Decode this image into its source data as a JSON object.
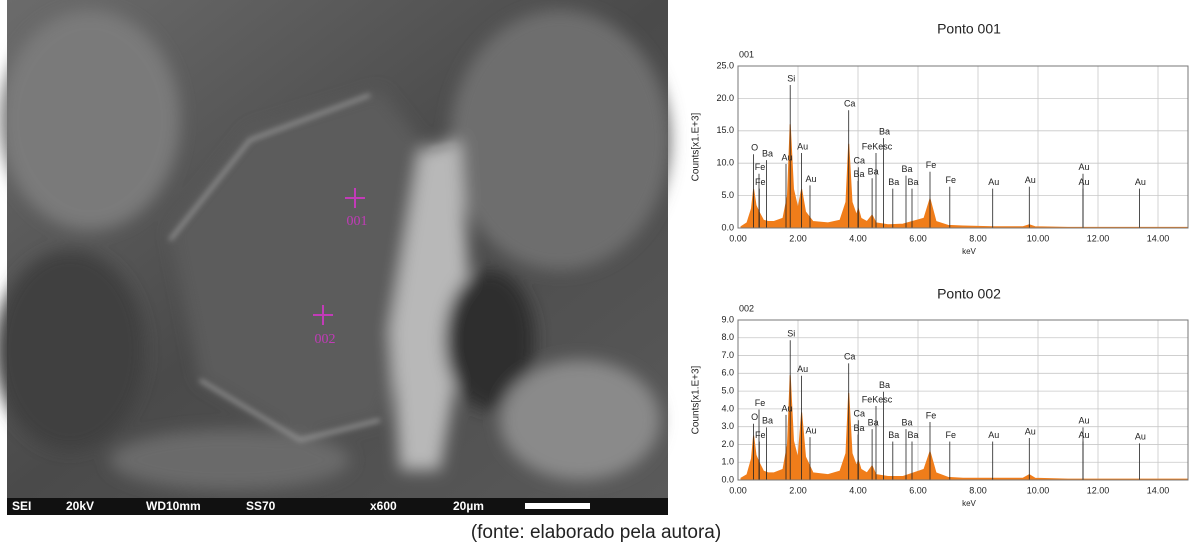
{
  "image": {
    "markers": [
      "001",
      "002"
    ],
    "info_bar": [
      "SEI",
      "20kV",
      "WD10mm",
      "SS70",
      "x600",
      "20µm"
    ]
  },
  "caption": "(fonte: elaborado pela autora)",
  "chart_data": [
    {
      "type": "area",
      "title": "Ponto 001",
      "spectrum_id": "001",
      "ylabel": "Counts[x1.E+3]",
      "xlabel": "keV",
      "color": "#f07d1a",
      "grid": true,
      "xlim": [
        0,
        15
      ],
      "ylim": [
        0,
        25
      ],
      "xticks": [
        {
          "value": 0,
          "label": "0.00"
        },
        {
          "value": 2,
          "label": "2.00"
        },
        {
          "value": 4,
          "label": "4.00"
        },
        {
          "value": 6,
          "label": "6.00"
        },
        {
          "value": 8,
          "label": "8.00"
        },
        {
          "value": 10,
          "label": "10.00"
        },
        {
          "value": 12,
          "label": "12.00"
        },
        {
          "value": 14,
          "label": "14.00"
        }
      ],
      "yticks": [
        {
          "value": 0,
          "label": "0.0"
        },
        {
          "value": 5,
          "label": "5.0"
        },
        {
          "value": 10,
          "label": "10.0"
        },
        {
          "value": 15,
          "label": "15.0"
        },
        {
          "value": 20,
          "label": "20.0"
        },
        {
          "value": 25,
          "label": "25.0"
        }
      ],
      "x": [
        0.1,
        0.3,
        0.45,
        0.52,
        0.6,
        0.7,
        0.85,
        1.0,
        1.2,
        1.5,
        1.65,
        1.74,
        1.85,
        2.0,
        2.12,
        2.25,
        2.5,
        3.0,
        3.4,
        3.6,
        3.69,
        3.8,
        3.95,
        4.01,
        4.1,
        4.3,
        4.47,
        4.6,
        5.0,
        5.5,
        6.2,
        6.4,
        6.6,
        7.0,
        7.5,
        8.5,
        9.5,
        9.71,
        9.9,
        11.0,
        12.0,
        13.0,
        14.0,
        15.0
      ],
      "values": [
        0.2,
        0.8,
        3.0,
        6.0,
        3.5,
        2.5,
        1.2,
        1.0,
        1.0,
        1.5,
        5.0,
        16.0,
        6.0,
        3.0,
        6.0,
        2.5,
        1.0,
        0.8,
        1.2,
        4.0,
        13.0,
        4.0,
        2.0,
        3.0,
        1.5,
        1.0,
        2.0,
        0.8,
        0.5,
        0.6,
        1.5,
        4.5,
        1.0,
        0.4,
        0.3,
        0.2,
        0.2,
        0.5,
        0.2,
        0.1,
        0.1,
        0.1,
        0.1,
        0.1
      ],
      "annotations": [
        {
          "text": "Si",
          "x": 1.74,
          "y": 23
        },
        {
          "text": "Ca",
          "x": 3.69,
          "y": 19.1
        },
        {
          "text": "Ba",
          "x": 4.85,
          "y": 14.8
        },
        {
          "text": "FeKesc",
          "x": 4.6,
          "y": 12.5
        },
        {
          "text": "O",
          "x": 0.52,
          "y": 12.3
        },
        {
          "text": "Ba",
          "x": 0.95,
          "y": 11.4
        },
        {
          "text": "Au",
          "x": 2.12,
          "y": 12.5
        },
        {
          "text": "Au",
          "x": 1.6,
          "y": 10.8
        },
        {
          "text": "Fe",
          "x": 0.7,
          "y": 9.3
        },
        {
          "text": "Fe",
          "x": 0.71,
          "y": 7
        },
        {
          "text": "Au",
          "x": 2.4,
          "y": 7.5
        },
        {
          "text": "Ca",
          "x": 4.01,
          "y": 10.3
        },
        {
          "text": "Ba",
          "x": 4.0,
          "y": 8.2
        },
        {
          "text": "Ba",
          "x": 4.47,
          "y": 8.6
        },
        {
          "text": "Ba",
          "x": 5.6,
          "y": 9
        },
        {
          "text": "Ba",
          "x": 5.16,
          "y": 7
        },
        {
          "text": "Ba",
          "x": 5.8,
          "y": 7
        },
        {
          "text": "Fe",
          "x": 6.4,
          "y": 9.6
        },
        {
          "text": "Fe",
          "x": 7.06,
          "y": 7.3
        },
        {
          "text": "Au",
          "x": 8.49,
          "y": 7
        },
        {
          "text": "Au",
          "x": 9.71,
          "y": 7.3
        },
        {
          "text": "Au",
          "x": 11.5,
          "y": 9.3
        },
        {
          "text": "Au",
          "x": 11.5,
          "y": 7
        },
        {
          "text": "Au",
          "x": 13.38,
          "y": 7
        }
      ]
    },
    {
      "type": "area",
      "title": "Ponto 002",
      "spectrum_id": "002",
      "ylabel": "Counts[x1.E+3]",
      "xlabel": "keV",
      "color": "#f07d1a",
      "grid": true,
      "xlim": [
        0,
        15
      ],
      "ylim": [
        0,
        9
      ],
      "xticks": [
        {
          "value": 0,
          "label": "0.00"
        },
        {
          "value": 2,
          "label": "2.00"
        },
        {
          "value": 4,
          "label": "4.00"
        },
        {
          "value": 6,
          "label": "6.00"
        },
        {
          "value": 8,
          "label": "8.00"
        },
        {
          "value": 10,
          "label": "10.00"
        },
        {
          "value": 12,
          "label": "12.00"
        },
        {
          "value": 14,
          "label": "14.00"
        }
      ],
      "yticks": [
        {
          "value": 0,
          "label": "0.0"
        },
        {
          "value": 1,
          "label": "1.0"
        },
        {
          "value": 2,
          "label": "2.0"
        },
        {
          "value": 3,
          "label": "3.0"
        },
        {
          "value": 4,
          "label": "4.0"
        },
        {
          "value": 5,
          "label": "5.0"
        },
        {
          "value": 6,
          "label": "6.0"
        },
        {
          "value": 7,
          "label": "7.0"
        },
        {
          "value": 8,
          "label": "8.0"
        },
        {
          "value": 9,
          "label": "9.0"
        }
      ],
      "x": [
        0.1,
        0.3,
        0.45,
        0.52,
        0.6,
        0.7,
        0.85,
        1.0,
        1.2,
        1.5,
        1.65,
        1.74,
        1.85,
        2.0,
        2.12,
        2.25,
        2.5,
        3.0,
        3.4,
        3.6,
        3.69,
        3.8,
        3.95,
        4.01,
        4.1,
        4.3,
        4.47,
        4.6,
        5.0,
        5.5,
        6.2,
        6.4,
        6.6,
        7.0,
        7.5,
        8.5,
        9.5,
        9.71,
        9.9,
        11.0,
        12.0,
        13.0,
        14.0,
        15.0
      ],
      "values": [
        0.1,
        0.3,
        1.2,
        2.5,
        1.4,
        1.0,
        0.5,
        0.4,
        0.4,
        0.6,
        2.0,
        5.9,
        2.2,
        1.2,
        3.8,
        1.3,
        0.4,
        0.3,
        0.5,
        1.5,
        4.9,
        1.5,
        0.8,
        1.1,
        0.6,
        0.4,
        0.8,
        0.3,
        0.2,
        0.2,
        0.6,
        1.6,
        0.4,
        0.15,
        0.1,
        0.1,
        0.1,
        0.3,
        0.1,
        0.05,
        0.05,
        0.05,
        0.05,
        0.05
      ],
      "annotations": [
        {
          "text": "Si",
          "x": 1.74,
          "y": 8.2
        },
        {
          "text": "Au",
          "x": 2.12,
          "y": 6.2
        },
        {
          "text": "Ca",
          "x": 3.69,
          "y": 6.9
        },
        {
          "text": "Ba",
          "x": 4.85,
          "y": 5.3
        },
        {
          "text": "FeKesc",
          "x": 4.6,
          "y": 4.5
        },
        {
          "text": "Fe",
          "x": 0.7,
          "y": 4.3
        },
        {
          "text": "O",
          "x": 0.52,
          "y": 3.5
        },
        {
          "text": "Ba",
          "x": 0.95,
          "y": 3.3
        },
        {
          "text": "Au",
          "x": 1.6,
          "y": 4.0
        },
        {
          "text": "Ca",
          "x": 4.01,
          "y": 3.7
        },
        {
          "text": "Ba",
          "x": 4.0,
          "y": 2.9
        },
        {
          "text": "Ba",
          "x": 4.47,
          "y": 3.2
        },
        {
          "text": "Ba",
          "x": 5.6,
          "y": 3.2
        },
        {
          "text": "Fe",
          "x": 6.4,
          "y": 3.6
        },
        {
          "text": "Fe",
          "x": 0.71,
          "y": 2.5
        },
        {
          "text": "Au",
          "x": 2.4,
          "y": 2.75
        },
        {
          "text": "Ba",
          "x": 5.16,
          "y": 2.5
        },
        {
          "text": "Ba",
          "x": 5.8,
          "y": 2.5
        },
        {
          "text": "Fe",
          "x": 7.06,
          "y": 2.5
        },
        {
          "text": "Au",
          "x": 8.49,
          "y": 2.5
        },
        {
          "text": "Au",
          "x": 9.71,
          "y": 2.7
        },
        {
          "text": "Au",
          "x": 11.5,
          "y": 3.3
        },
        {
          "text": "Au",
          "x": 11.5,
          "y": 2.5
        },
        {
          "text": "Au",
          "x": 13.38,
          "y": 2.4
        }
      ]
    }
  ]
}
